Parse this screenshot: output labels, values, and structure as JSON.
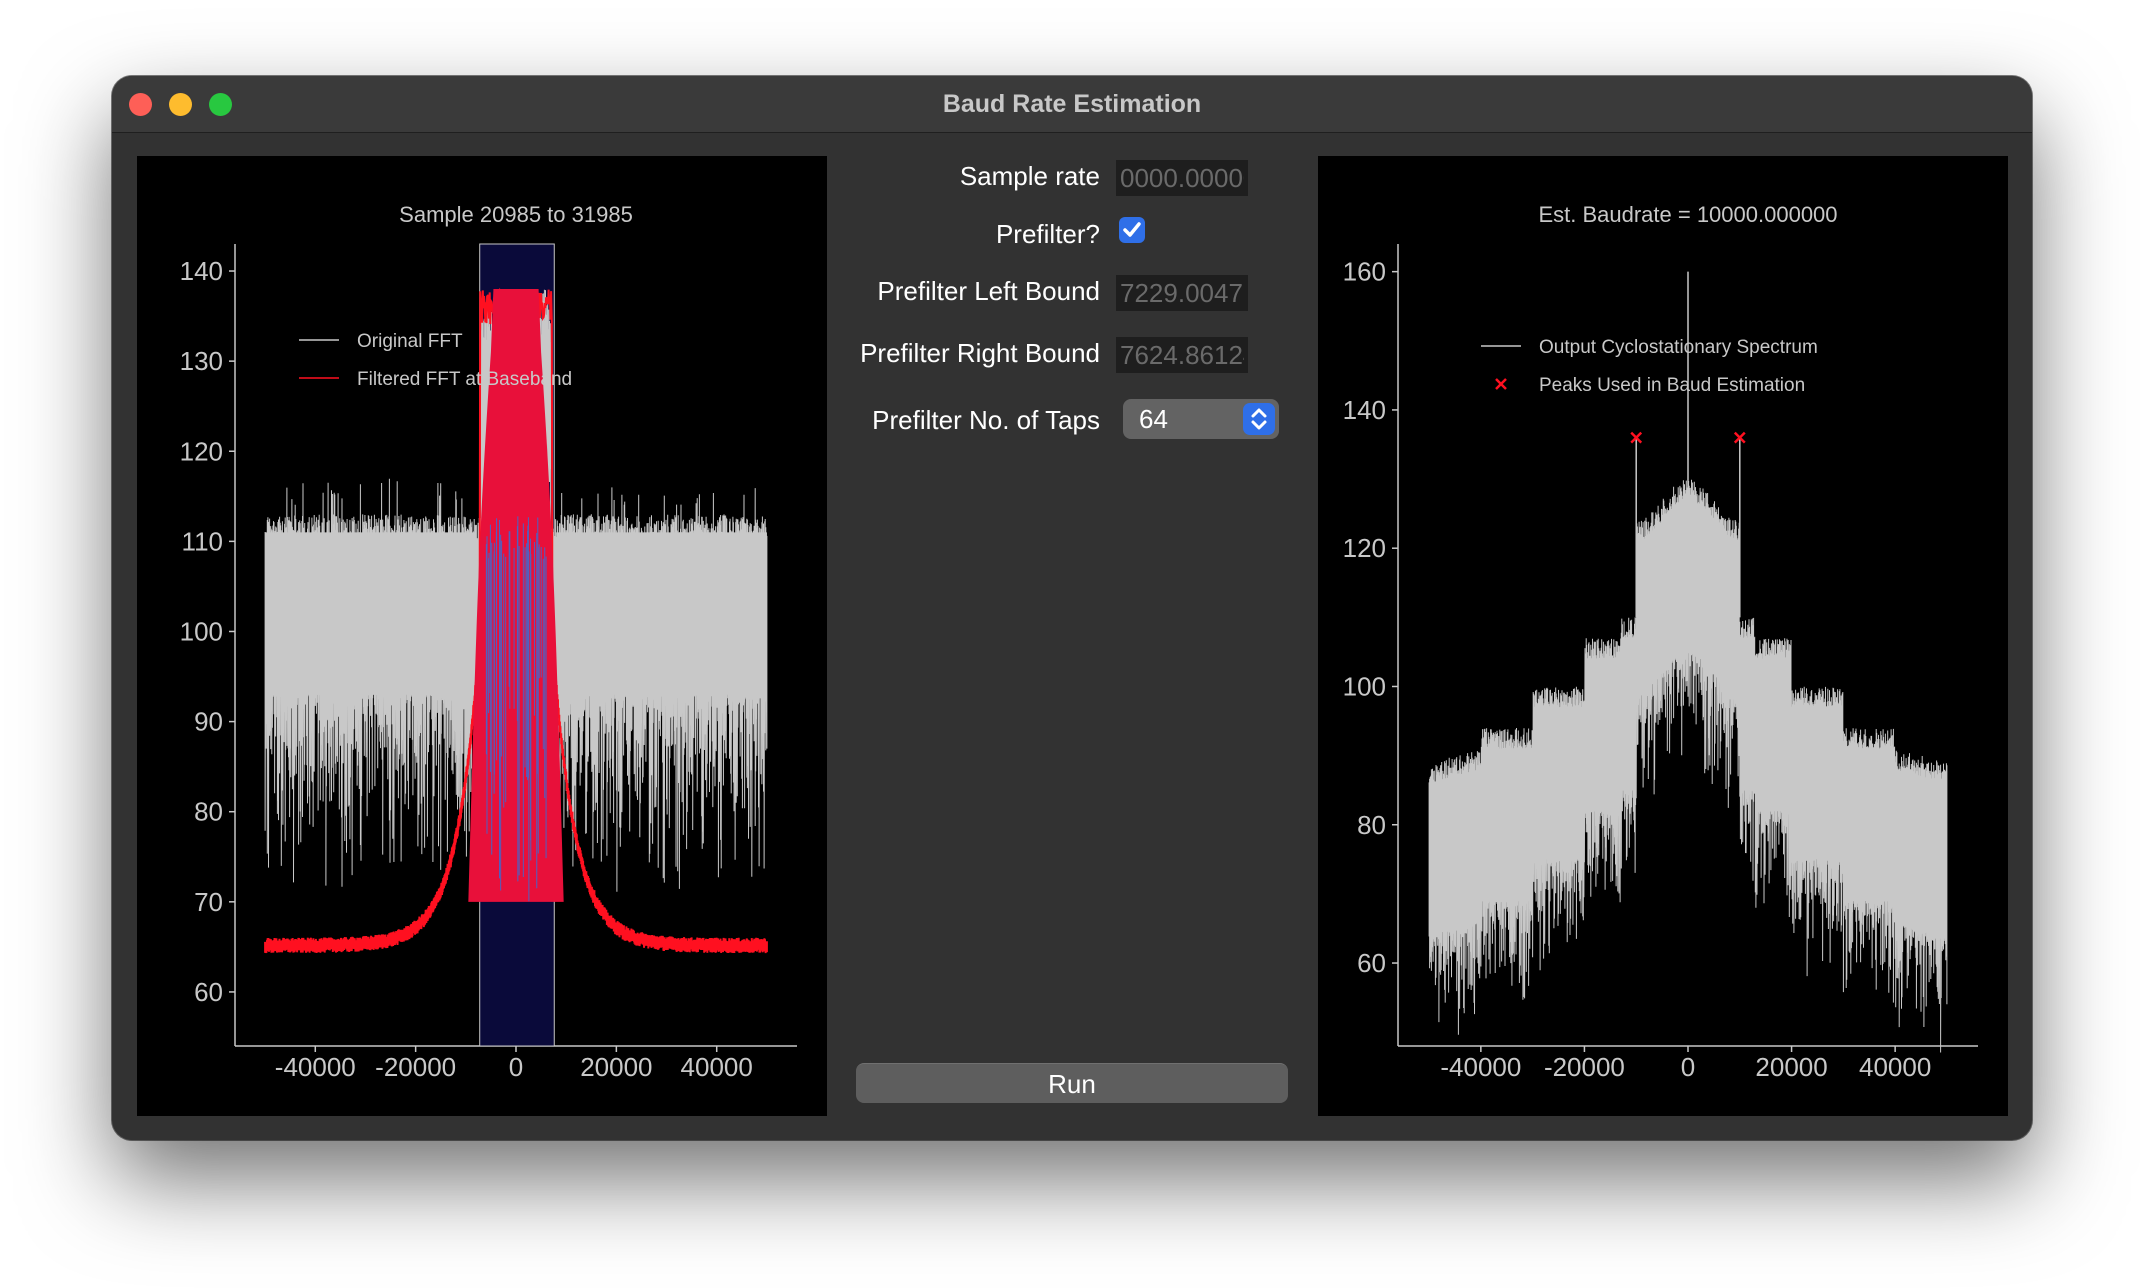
{
  "window": {
    "title": "Baud Rate Estimation"
  },
  "form": {
    "sample_rate_label": "Sample rate",
    "sample_rate_value": "0000.000000",
    "prefilter_label": "Prefilter?",
    "prefilter_checked": true,
    "left_bound_label": "Prefilter Left Bound",
    "left_bound_value": "7229.004787",
    "right_bound_label": "Prefilter Right Bound",
    "right_bound_value": "7624.861246",
    "taps_label": "Prefilter No. of Taps",
    "taps_value": "64",
    "run_label": "Run"
  },
  "chart_data": [
    {
      "type": "line",
      "title": "Sample 20985 to 31985",
      "xlabel": "",
      "ylabel": "",
      "xlim": [
        -56000,
        56000
      ],
      "ylim": [
        54,
        143
      ],
      "xticks": [
        -40000,
        -20000,
        0,
        20000,
        40000
      ],
      "xtick_labels": [
        "-40000",
        "-20000",
        "0",
        "20000",
        "40000"
      ],
      "yticks": [
        60,
        70,
        80,
        90,
        100,
        110,
        120,
        130,
        140
      ],
      "ytick_labels": [
        "60",
        "70",
        "80",
        "90",
        "100",
        "110",
        "120",
        "130",
        "140"
      ],
      "legend_position": "upper-left",
      "highlight_band": [
        -7229,
        7625
      ],
      "series": [
        {
          "name": "Original FFT",
          "color": "#c8c8c8",
          "x_range": [
            -50000,
            50000
          ],
          "band_low": 93,
          "band_high": 113,
          "dip_min": 67,
          "center_level": 138
        },
        {
          "name": "Filtered FFT at Baseband",
          "color": "#ff1020",
          "x_range": [
            -50000,
            50000
          ],
          "floor": 65.5,
          "center_level": 138,
          "edge_x": 7200
        }
      ]
    },
    {
      "type": "line",
      "title": "Est. Baudrate = 10000.000000",
      "xlabel": "",
      "ylabel": "",
      "xlim": [
        -56000,
        56000
      ],
      "ylim": [
        48,
        164
      ],
      "xticks": [
        -40000,
        -20000,
        0,
        20000,
        40000
      ],
      "xtick_labels": [
        "-40000",
        "-20000",
        "0",
        "20000",
        "40000"
      ],
      "yticks": [
        60,
        80,
        100,
        120,
        140,
        160
      ],
      "ytick_labels": [
        "60",
        "80",
        "100",
        "120",
        "140",
        "160"
      ],
      "legend_position": "upper-center",
      "series": [
        {
          "name": "Output Cyclostationary Spectrum",
          "color": "#c8c8c8",
          "x_range": [
            -50000,
            50000
          ],
          "center_spike": 160
        },
        {
          "name": "Peaks Used in Baud Estimation",
          "color": "#ff1020",
          "marker": "x",
          "x": [
            -10000,
            10000
          ],
          "y": [
            136,
            136
          ]
        }
      ]
    }
  ]
}
